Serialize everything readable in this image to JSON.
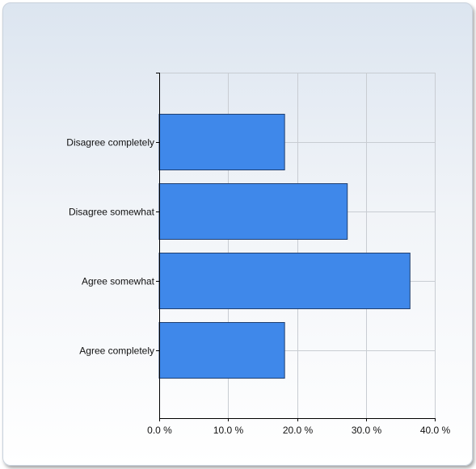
{
  "chart_data": {
    "type": "bar",
    "orientation": "horizontal",
    "categories": [
      "Disagree completely",
      "Disagree somewhat",
      "Agree somewhat",
      "Agree completely"
    ],
    "values": [
      18.2,
      27.3,
      36.4,
      18.2
    ],
    "xlim": [
      0,
      40
    ],
    "xticks": [
      "0.0 %",
      "10.0 %",
      "20.0 %",
      "30.0 %",
      "40.0 %"
    ],
    "title": "",
    "xlabel": "",
    "ylabel": "",
    "grid": true,
    "bar_color": "#3f88ea",
    "bar_border_color": "#1f3f70"
  }
}
